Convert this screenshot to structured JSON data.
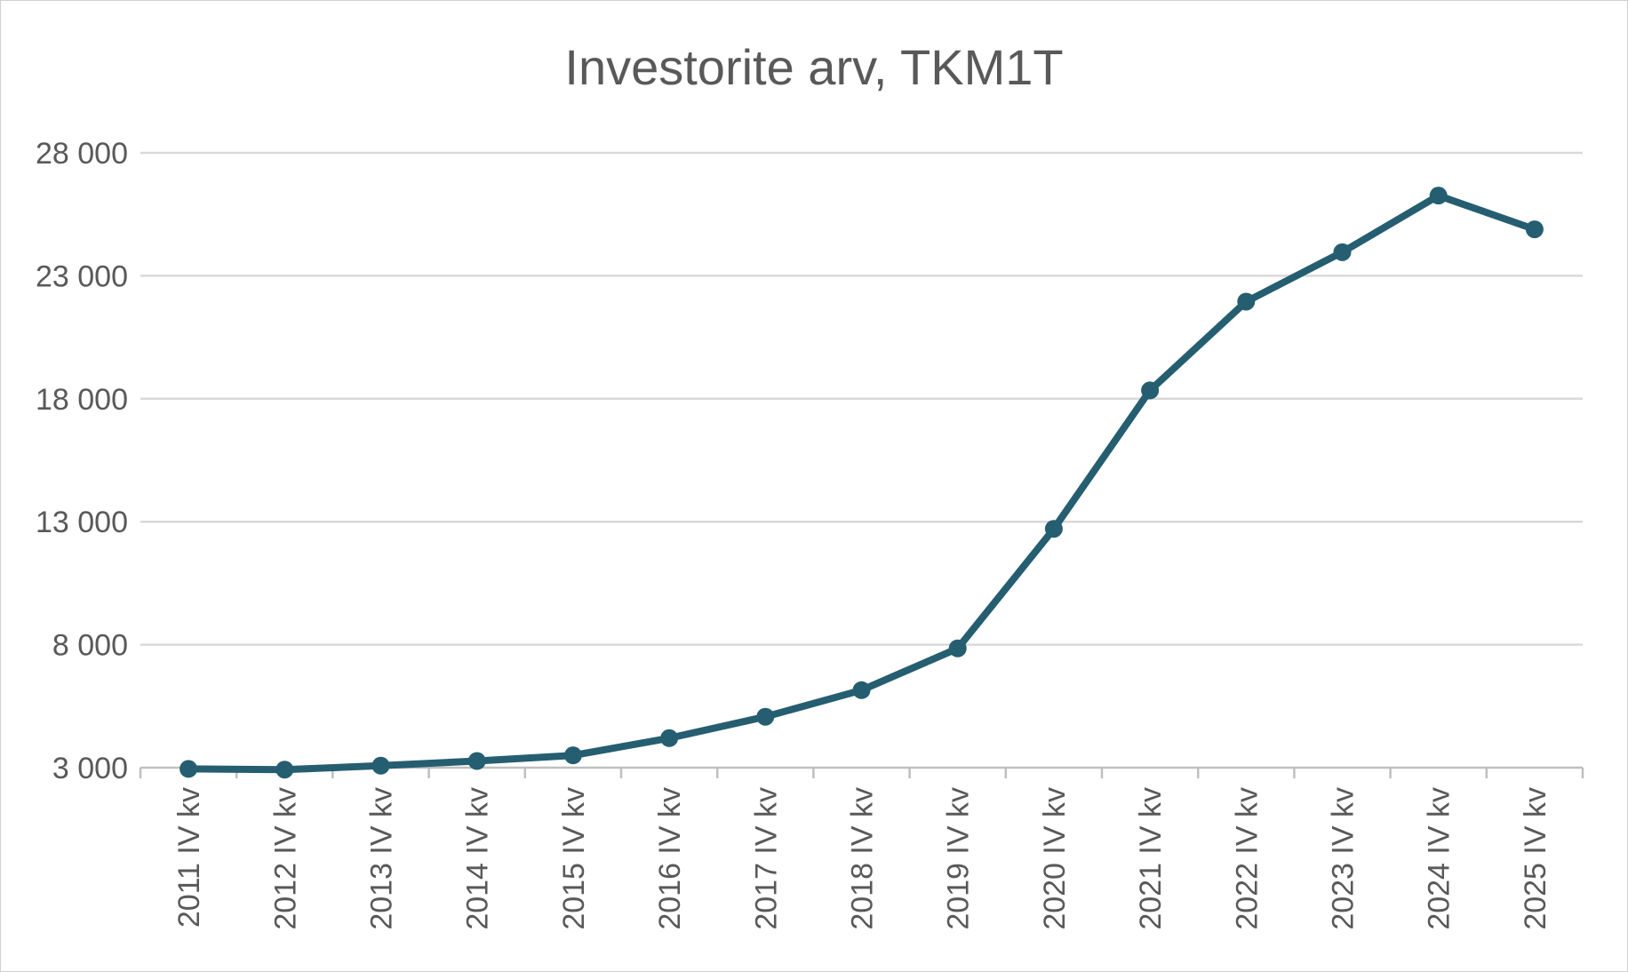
{
  "chart_data": {
    "type": "line",
    "title": "Investorite arv, TKM1T",
    "xlabel": "",
    "ylabel": "",
    "categories": [
      "2011 IV kv",
      "2012 IV kv",
      "2013 IV kv",
      "2014 IV kv",
      "2015 IV kv",
      "2016 IV kv",
      "2017 IV kv",
      "2018 IV kv",
      "2019 IV kv",
      "2020 IV kv",
      "2021 IV kv",
      "2022 IV kv",
      "2023 IV kv",
      "2024 IV kv",
      "2025 IV kv"
    ],
    "series": [
      {
        "values": [
          2950,
          2920,
          3080,
          3270,
          3500,
          4200,
          5070,
          6150,
          7850,
          12710,
          18340,
          21950,
          23960,
          26260,
          24890
        ]
      }
    ],
    "ylim": [
      3000,
      28000
    ],
    "yticks": [
      3000,
      8000,
      13000,
      18000,
      23000,
      28000
    ],
    "ytick_labels": [
      "3 000",
      "8 000",
      "13 000",
      "18 000",
      "23 000",
      "28 000"
    ],
    "grid": true,
    "legend": "none",
    "colors": {
      "line": "#255e70",
      "grid": "#d9d9d9",
      "axis": "#bfbfbf",
      "text": "#595959"
    }
  }
}
